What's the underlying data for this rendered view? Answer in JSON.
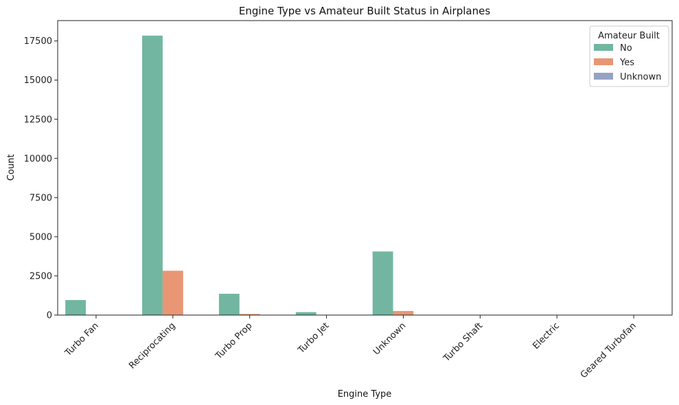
{
  "chart_data": {
    "type": "bar",
    "title": "Engine Type vs Amateur Built Status in Airplanes",
    "xlabel": "Engine Type",
    "ylabel": "Count",
    "categories": [
      "Turbo Fan",
      "Reciprocating",
      "Turbo Prop",
      "Turbo Jet",
      "Unknown",
      "Turbo Shaft",
      "Electric",
      "Geared Turbofan"
    ],
    "series": [
      {
        "name": "No",
        "color": "#72b6a1",
        "values": [
          960,
          17840,
          1360,
          190,
          4060,
          10,
          5,
          5
        ]
      },
      {
        "name": "Yes",
        "color": "#e99675",
        "values": [
          10,
          2830,
          70,
          10,
          260,
          2,
          2,
          0
        ]
      },
      {
        "name": "Unknown",
        "color": "#95a3c3",
        "values": [
          0,
          5,
          0,
          0,
          0,
          0,
          0,
          0
        ]
      }
    ],
    "legend": {
      "title": "Amateur Built",
      "placement": "top-right"
    },
    "ylim": [
      0,
      18800
    ],
    "yticks": [
      0,
      2500,
      5000,
      7500,
      10000,
      12500,
      15000,
      17500
    ],
    "ytick_labels": [
      "0",
      "2500",
      "5000",
      "7500",
      "10000",
      "12500",
      "15000",
      "17500"
    ],
    "grid": false
  }
}
